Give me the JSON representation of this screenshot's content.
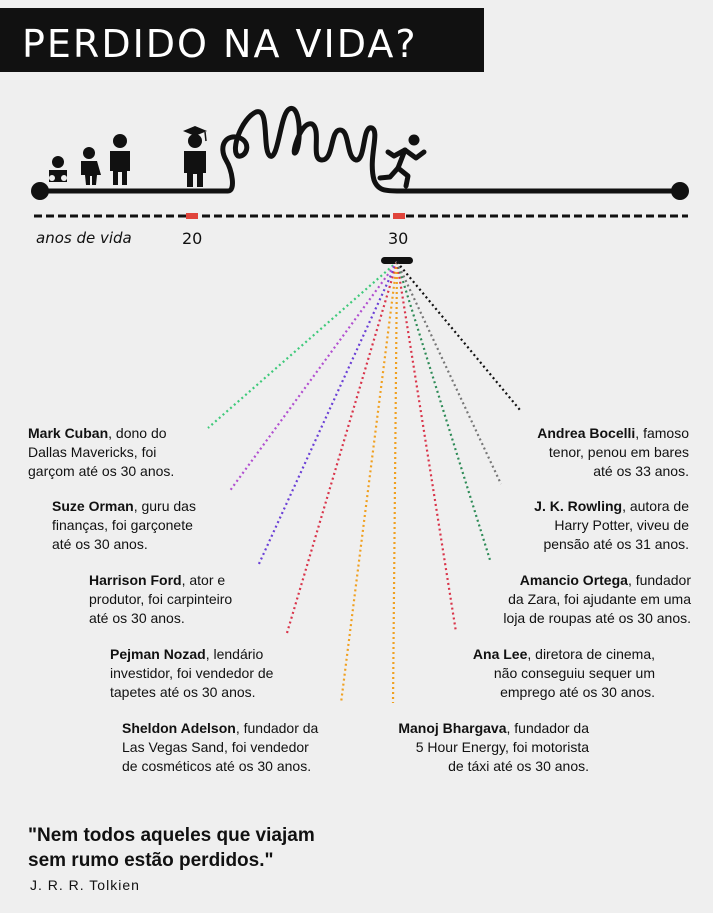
{
  "title": "PERDIDO NA VIDA?",
  "timeline": {
    "axis_label": "anos de vida",
    "ticks": [
      "20",
      "30"
    ]
  },
  "colors": {
    "background": "#efefef",
    "ink": "#111111",
    "tick_marker": "#e0443b"
  },
  "icons": [
    "baby-icon",
    "child-icon",
    "adult-icon",
    "graduate-icon",
    "runner-icon"
  ],
  "people": [
    {
      "name": "Mark Cuban",
      "rest1": ", dono do",
      "line2": "Dallas Mavericks, foi",
      "line3": "garçom até os 30 anos.",
      "color": "#3ec97a"
    },
    {
      "name": "Suze Orman",
      "rest1": ", guru das",
      "line2": "finanças, foi garçonete",
      "line3": "até os 30 anos.",
      "color": "#b14fd0"
    },
    {
      "name": "Harrison Ford",
      "rest1": ", ator e",
      "line2": "produtor, foi carpinteiro",
      "line3": "até os 30 anos.",
      "color": "#6a3fd6"
    },
    {
      "name": "Pejman Nozad",
      "rest1": ", lendário",
      "line2": "investidor, foi vendedor de",
      "line3": "tapetes até os 30 anos.",
      "color": "#d9344a"
    },
    {
      "name": "Sheldon Adelson",
      "rest1": ", fundador da",
      "line2": "Las Vegas Sand, foi vendedor",
      "line3": "de cosméticos até os 30 anos.",
      "color": "#f0a020"
    },
    {
      "name": "Andrea Bocelli",
      "rest1": ", famoso",
      "line2": "tenor, penou em bares",
      "line3": "até os 33 anos.",
      "color": "#111111"
    },
    {
      "name": "J. K. Rowling",
      "rest1": ", autora de",
      "line2": "Harry Potter, viveu de",
      "line3": "pensão até os 31 anos.",
      "color": "#777777"
    },
    {
      "name": "Amancio Ortega",
      "rest1": ", fundador",
      "line2": "da Zara, foi ajudante em uma",
      "line3": "loja de roupas até os 30 anos.",
      "color": "#2e8b57"
    },
    {
      "name": "Ana Lee",
      "rest1": ", diretora de cinema,",
      "line2": "não conseguiu sequer um",
      "line3": "emprego até os 30 anos.",
      "color": "#d9344a"
    },
    {
      "name": "Manoj Bhargava",
      "rest1": ", fundador da",
      "line2": "5 Hour Energy, foi motorista",
      "line3": "de táxi até os 30 anos.",
      "color": "#f0a020"
    }
  ],
  "quote": {
    "line1": "\"Nem todos aqueles que viajam",
    "line2": "sem rumo estão perdidos.\"",
    "author": "J. R. R. Tolkien"
  }
}
